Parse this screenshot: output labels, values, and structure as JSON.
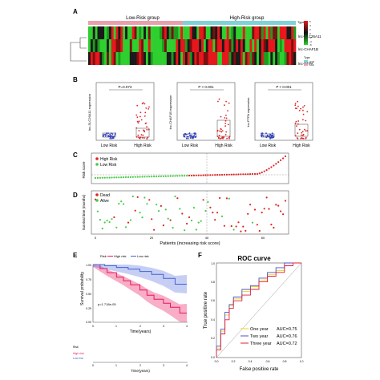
{
  "panels": {
    "A": "A",
    "B": "B",
    "C": "C",
    "D": "D",
    "E": "E",
    "F": "F"
  },
  "heatmap": {
    "group_low": "Low-Risk group",
    "group_high": "High-Risk group",
    "type_label": "Type",
    "genes": [
      "lnc-SLC26A11",
      "lnc-CHAF1B",
      "lnc-PTPA"
    ],
    "legend_ticks": [
      "6",
      "4",
      "2",
      "0",
      "-2",
      "-4",
      "-6"
    ],
    "type_legend_title": "Type",
    "type_legend": [
      "High",
      "Low"
    ],
    "colors": {
      "low_group": "#7fd3d6",
      "high_group": "#e9a0ad",
      "hi": "#e8171c",
      "mid": "#111111",
      "lo": "#2ecf2e"
    }
  },
  "boxplots": [
    {
      "p": "P=0.073",
      "ylabel": "lnc-SLC26A11 expression",
      "xticks": [
        "Low Risk",
        "High Risk"
      ]
    },
    {
      "p": "P < 0.001",
      "ylabel": "lnc-CHAF1B expression",
      "xticks": [
        "Low Risk",
        "High Risk"
      ]
    },
    {
      "p": "P < 0.001",
      "ylabel": "lnc-PTPA expression",
      "xticks": [
        "Low Risk",
        "High Risk"
      ]
    }
  ],
  "risk": {
    "ylabel": "Risk score",
    "legend": [
      "High Risk",
      "Low Risk"
    ],
    "colors": {
      "high": "#e02424",
      "low": "#44cc44"
    }
  },
  "survival_status": {
    "ylabel": "Survival time (months)",
    "xlabel": "Patients (increasing risk score)",
    "legend": [
      "Dead",
      "Alive"
    ],
    "xticks": [
      "0",
      "20",
      "40",
      "60"
    ]
  },
  "km": {
    "legend_title": "Risk",
    "legend": [
      "High risk",
      "Low risk"
    ],
    "ylabel": "Survival probability",
    "xlabel": "Time(years)",
    "pvalue": "p=1.718e-05",
    "yticks": [
      "1.00",
      "0.75",
      "0.50",
      "0.25",
      "0.00"
    ],
    "xticks": [
      "0",
      "1",
      "2",
      "3",
      "4"
    ],
    "risk_table_title": "Risk",
    "risk_rows": [
      "High risk",
      "Low risk"
    ],
    "risk_xlabel": "Time(years)",
    "colors": {
      "high": "#e8175d",
      "low": "#4361d8"
    }
  },
  "roc": {
    "title": "ROC curve",
    "ylabel": "True positive rate",
    "xlabel": "False positive rate",
    "ticks": [
      "0.0",
      "0.2",
      "0.4",
      "0.6",
      "0.8",
      "1.0"
    ],
    "legend": [
      {
        "name": "One year",
        "auc": "AUC=0.75",
        "color": "#f2d21a"
      },
      {
        "name": "Two year",
        "auc": "AUC=0.76",
        "color": "#4a56c8"
      },
      {
        "name": "Three year",
        "auc": "AUC=0.72",
        "color": "#e01f3a"
      }
    ]
  },
  "chart_data": [
    {
      "type": "heatmap",
      "title": "",
      "rows": [
        "lnc-SLC26A11",
        "lnc-CHAF1B",
        "lnc-PTPA"
      ],
      "groups": [
        "Low-Risk group",
        "High-Risk group"
      ],
      "color_range": [
        -6,
        6
      ]
    },
    {
      "type": "line",
      "title": "",
      "ylabel": "Risk score",
      "series": [
        {
          "name": "Low Risk"
        },
        {
          "name": "High Risk"
        }
      ]
    },
    {
      "type": "scatter",
      "xlabel": "Patients (increasing risk score)",
      "ylabel": "Survival time (months)",
      "series": [
        {
          "name": "Dead"
        },
        {
          "name": "Alive"
        }
      ]
    },
    {
      "type": "line",
      "xlabel": "Time(years)",
      "ylabel": "Survival probability",
      "ylim": [
        0,
        1
      ],
      "xlim": [
        0,
        4
      ],
      "series": [
        {
          "name": "High risk",
          "x": [
            0,
            0.3,
            0.6,
            1.0,
            1.3,
            1.6,
            2.0,
            2.3,
            2.6,
            3.0,
            3.3,
            3.7,
            4.0
          ],
          "values": [
            1.0,
            0.93,
            0.86,
            0.78,
            0.72,
            0.65,
            0.56,
            0.47,
            0.4,
            0.33,
            0.26,
            0.16,
            0.16
          ]
        },
        {
          "name": "Low risk",
          "x": [
            0,
            0.5,
            1.0,
            1.5,
            2.0,
            2.5,
            3.0,
            3.5,
            4.0
          ],
          "values": [
            1.0,
            0.98,
            0.95,
            0.92,
            0.88,
            0.83,
            0.76,
            0.66,
            0.66
          ]
        }
      ]
    },
    {
      "type": "line",
      "title": "ROC curve",
      "xlabel": "False positive rate",
      "ylabel": "True positive rate",
      "xlim": [
        0,
        1
      ],
      "ylim": [
        0,
        1
      ],
      "series": [
        {
          "name": "One year",
          "x": [
            0,
            0.05,
            0.1,
            0.15,
            0.2,
            0.3,
            0.4,
            0.5,
            0.6,
            0.7,
            0.8,
            0.9,
            1.0
          ],
          "values": [
            0,
            0.1,
            0.28,
            0.45,
            0.55,
            0.62,
            0.7,
            0.75,
            0.82,
            0.88,
            0.92,
            1.0,
            1.0
          ]
        },
        {
          "name": "Two year",
          "x": [
            0,
            0.05,
            0.1,
            0.15,
            0.2,
            0.3,
            0.4,
            0.5,
            0.6,
            0.7,
            0.8,
            0.9,
            1.0
          ],
          "values": [
            0,
            0.12,
            0.3,
            0.48,
            0.56,
            0.64,
            0.72,
            0.76,
            0.84,
            0.9,
            0.95,
            1.0,
            1.0
          ]
        },
        {
          "name": "Three year",
          "x": [
            0,
            0.05,
            0.1,
            0.15,
            0.2,
            0.3,
            0.4,
            0.5,
            0.6,
            0.7,
            0.8,
            0.9,
            1.0
          ],
          "values": [
            0,
            0.08,
            0.25,
            0.4,
            0.52,
            0.6,
            0.66,
            0.72,
            0.8,
            0.86,
            0.9,
            0.97,
            1.0
          ]
        }
      ]
    }
  ]
}
